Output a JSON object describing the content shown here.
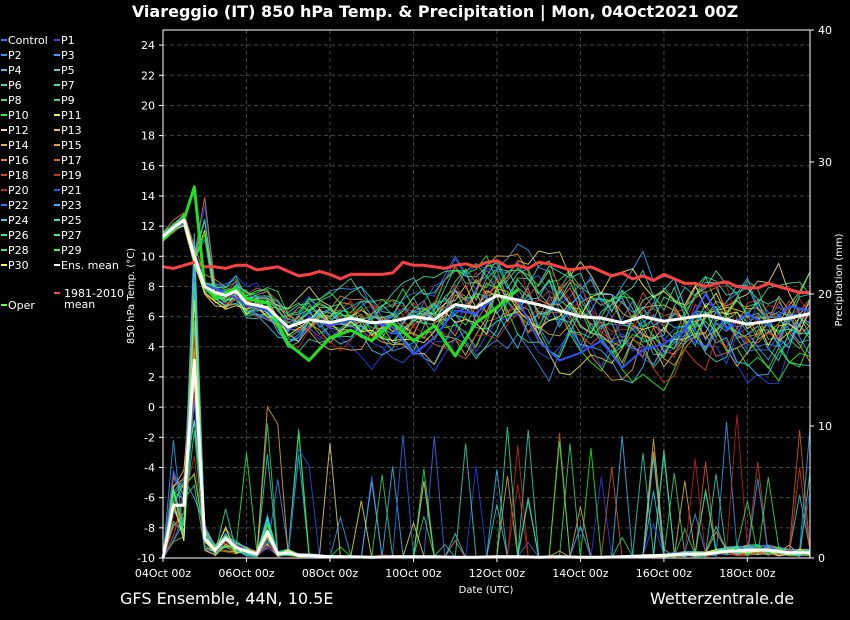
{
  "title": "Viareggio  (IT)  850 hPa Temp. & Precipitation | Mon, 04Oct2021 00Z",
  "footer_left": "GFS Ensemble, 44N, 10.5E",
  "footer_right": "Wetterzentrale.de",
  "chart_data": {
    "type": "line",
    "xlabel": "Date (UTC)",
    "ylabel": "850 hPa Temp. (°C)",
    "y2label": "Precipitation (mm)",
    "ylim": [
      -10,
      25
    ],
    "y2lim": [
      0,
      40
    ],
    "yticks": [
      -10,
      -8,
      -6,
      -4,
      -2,
      0,
      2,
      4,
      6,
      8,
      10,
      12,
      14,
      16,
      18,
      20,
      22,
      24
    ],
    "y2ticks": [
      0,
      10,
      20,
      30,
      40
    ],
    "xticks": [
      "04Oct 00z",
      "06Oct 00z",
      "08Oct 00z",
      "10Oct 00z",
      "12Oct 00z",
      "14Oct 00z",
      "16Oct 00z",
      "18Oct 00z"
    ],
    "xlim_days": [
      0,
      15.5
    ],
    "grid": true,
    "legend_position": "left",
    "legend": [
      {
        "name": "Control",
        "color": "#4f6bff"
      },
      {
        "name": "P1",
        "color": "#2f3fff"
      },
      {
        "name": "P2",
        "color": "#3f8fff"
      },
      {
        "name": "P3",
        "color": "#3fa0ff"
      },
      {
        "name": "P4",
        "color": "#3fc0ff"
      },
      {
        "name": "P5",
        "color": "#3fd8d8"
      },
      {
        "name": "P6",
        "color": "#3fe0c0"
      },
      {
        "name": "P7",
        "color": "#3fe0a0"
      },
      {
        "name": "P8",
        "color": "#3fe080"
      },
      {
        "name": "P9",
        "color": "#3fe060"
      },
      {
        "name": "P10",
        "color": "#20ff20"
      },
      {
        "name": "P11",
        "color": "#f0f040"
      },
      {
        "name": "P12",
        "color": "#f0e080"
      },
      {
        "name": "P13",
        "color": "#f0c040"
      },
      {
        "name": "P14",
        "color": "#f0b040"
      },
      {
        "name": "P15",
        "color": "#f0a020"
      },
      {
        "name": "P16",
        "color": "#e08060"
      },
      {
        "name": "P17",
        "color": "#e06030"
      },
      {
        "name": "P18",
        "color": "#e04020"
      },
      {
        "name": "P19",
        "color": "#d03010"
      },
      {
        "name": "P20",
        "color": "#d02020"
      },
      {
        "name": "P21",
        "color": "#3050ff"
      },
      {
        "name": "P22",
        "color": "#3070ff"
      },
      {
        "name": "P23",
        "color": "#30b0ff"
      },
      {
        "name": "P24",
        "color": "#30d0ff"
      },
      {
        "name": "P25",
        "color": "#30e0c0"
      },
      {
        "name": "P26",
        "color": "#30f0a0"
      },
      {
        "name": "P27",
        "color": "#30f080"
      },
      {
        "name": "P28",
        "color": "#30f060"
      },
      {
        "name": "P29",
        "color": "#30ff40"
      },
      {
        "name": "P30",
        "color": "#ffff40"
      },
      {
        "name": "Ens. mean",
        "color": "#ffffff"
      },
      {
        "name": "Oper",
        "color": "#60ff40"
      },
      {
        "name": "1981-2010 mean",
        "color": "#ff4040"
      }
    ],
    "series": [
      {
        "name": "Ens. mean",
        "color": "#ffffff",
        "x": [
          0,
          0.25,
          0.5,
          0.75,
          1,
          1.25,
          1.5,
          1.75,
          2,
          2.5,
          3,
          3.5,
          4,
          4.5,
          5,
          5.5,
          6,
          6.5,
          7,
          7.5,
          8,
          8.5,
          9,
          9.5,
          10,
          10.5,
          11,
          11.5,
          12,
          12.5,
          13,
          13.5,
          14,
          14.5,
          15,
          15.5
        ],
        "y": [
          11.3,
          11.9,
          12.4,
          10,
          8,
          7.6,
          7.4,
          7.7,
          6.9,
          6.6,
          5.3,
          5.8,
          5.6,
          5.9,
          5.6,
          5.7,
          6,
          5.8,
          6.8,
          6.6,
          7.4,
          7.1,
          6.8,
          6.4,
          6,
          5.9,
          5.6,
          6,
          5.7,
          5.9,
          6.1,
          5.8,
          5.5,
          5.7,
          5.9,
          6.2
        ]
      },
      {
        "name": "Oper",
        "color": "#20e020",
        "x": [
          0,
          0.25,
          0.5,
          0.75,
          1,
          1.25,
          1.5,
          1.75,
          2,
          2.5,
          3,
          3.5,
          4,
          4.5,
          5,
          5.5,
          6,
          6.5,
          7,
          7.5,
          8,
          8.5
        ],
        "y": [
          11.1,
          11.8,
          12.4,
          14.6,
          8,
          7.2,
          7.6,
          7.9,
          7.2,
          6.9,
          4.2,
          3.1,
          4.6,
          5.1,
          4.4,
          5.6,
          4.4,
          5.4,
          3.4,
          5.6,
          6.6,
          7.8
        ]
      },
      {
        "name": "Control",
        "color": "#3050ff",
        "x": [
          0,
          0.5,
          1,
          1.5,
          2,
          2.5,
          3,
          3.5,
          4,
          4.5,
          5,
          5.5,
          6,
          6.5,
          7,
          7.5,
          8,
          8.5,
          9,
          9.5,
          10,
          10.5,
          11,
          11.5,
          12,
          12.5,
          13,
          13.5,
          14,
          14.5,
          15,
          15.5
        ],
        "y": [
          11.4,
          12.2,
          8.1,
          7.6,
          6.8,
          6.4,
          5.2,
          5.9,
          5.4,
          5.8,
          5.6,
          5.3,
          3.5,
          4.6,
          6.4,
          6.2,
          7.4,
          7.1,
          4.4,
          3.1,
          3.6,
          4.4,
          2.6,
          3.8,
          4.2,
          5.1,
          7.5,
          5.2,
          6.2,
          5.4,
          6.7,
          6.4
        ]
      },
      {
        "name": "1981-2010 mean",
        "color": "#ff4040",
        "x": [
          0,
          0.25,
          0.5,
          0.75,
          1,
          1.25,
          1.5,
          1.75,
          2,
          2.25,
          2.5,
          2.75,
          3,
          3.25,
          3.5,
          3.75,
          4,
          4.25,
          4.5,
          4.75,
          5,
          5.25,
          5.5,
          5.75,
          6,
          6.25,
          6.5,
          6.75,
          7,
          7.25,
          7.5,
          7.75,
          8,
          8.25,
          8.5,
          8.75,
          9,
          9.25,
          9.5,
          9.75,
          10,
          10.25,
          10.5,
          10.75,
          11,
          11.25,
          11.5,
          11.75,
          12,
          12.25,
          12.5,
          12.75,
          13,
          13.25,
          13.5,
          13.75,
          14,
          14.25,
          14.5,
          14.75,
          15,
          15.25,
          15.5
        ],
        "y": [
          9.3,
          9.2,
          9.4,
          9.6,
          9.3,
          9.3,
          9.2,
          9.4,
          9.4,
          9.1,
          9.2,
          9.3,
          9,
          8.7,
          8.8,
          9,
          8.8,
          8.5,
          8.8,
          8.8,
          8.8,
          8.8,
          8.9,
          9.6,
          9.4,
          9.4,
          9.3,
          9.2,
          9.4,
          9.5,
          9.3,
          9.6,
          9.7,
          9.3,
          9.4,
          9.2,
          9.6,
          9.5,
          9.3,
          9.1,
          9.2,
          9.3,
          9,
          8.7,
          8.9,
          8.5,
          8.7,
          8.4,
          8.8,
          8.5,
          8.2,
          8.2,
          8,
          8.2,
          8.3,
          8,
          7.9,
          7.9,
          8.2,
          8,
          7.8,
          7.6,
          7.6
        ]
      },
      {
        "name": "Precip mean",
        "color": "#ffffff",
        "axis": "right",
        "x": [
          0,
          0.25,
          0.5,
          0.75,
          1,
          1.25,
          1.5,
          1.75,
          2,
          2.25,
          2.5,
          2.75,
          3,
          3.25,
          3.5,
          4,
          4.5,
          5,
          5.5,
          6,
          6.5,
          7,
          7.5,
          8,
          8.5,
          9,
          9.5,
          10,
          10.5,
          11,
          11.5,
          12,
          12.5,
          13,
          13.5,
          14,
          14.5,
          15,
          15.5
        ],
        "y": [
          0,
          4,
          4,
          15,
          1.5,
          0.6,
          1.5,
          0.8,
          0.5,
          0.3,
          2,
          0.3,
          0.4,
          0.2,
          0.2,
          0.1,
          0.1,
          0.05,
          0.1,
          0.1,
          0.1,
          0.05,
          0.05,
          0.1,
          0.1,
          0.05,
          0.1,
          0.05,
          0.05,
          0.1,
          0.15,
          0.2,
          0.3,
          0.3,
          0.5,
          0.6,
          0.6,
          0.4,
          0.4
        ]
      }
    ]
  }
}
